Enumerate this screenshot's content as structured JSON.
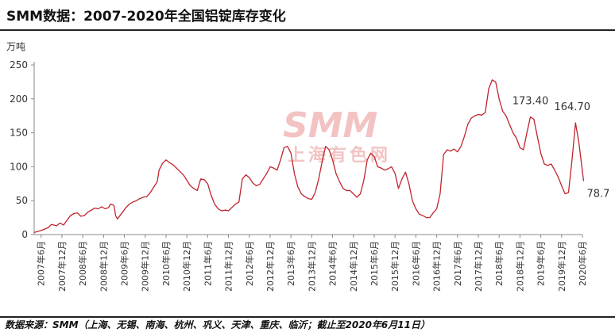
{
  "title": "SMM数据：2007-2020年全国铝锭库存变化",
  "source": "数据来源：SMM（上海、无锡、南海、杭州、巩义、天津、重庆、临沂；截止至2020年6月11日）",
  "watermark": {
    "logo": "SMM",
    "sub": "上海有色网"
  },
  "colors": {
    "line": "#c0242c",
    "axis": "#888888",
    "text": "#333333"
  },
  "chart_data": {
    "type": "line",
    "ylabel": "万吨",
    "ylim": [
      0,
      250
    ],
    "yticks": [
      "0",
      "50",
      "100",
      "150",
      "200",
      "250"
    ],
    "xlim": [
      "2007-04",
      "2020-06"
    ],
    "xticks": [
      "2007年6月",
      "2007年12月",
      "2008年6月",
      "2008年12月",
      "2009年6月",
      "2009年12月",
      "2010年6月",
      "2010年12月",
      "2011年6月",
      "2011年12月",
      "2012年6月",
      "2012年12月",
      "2013年6月",
      "2013年12月",
      "2014年6月",
      "2014年12月",
      "2015年6月",
      "2015年12月",
      "2016年6月",
      "2016年12月",
      "2017年6月",
      "2017年12月",
      "2018年6月",
      "2018年12月",
      "2019年6月",
      "2019年12月",
      "2020年6月"
    ],
    "grid": false,
    "legend": "none",
    "series": [
      {
        "color": "#c0242c",
        "points": [
          [
            "2007-04-01",
            3
          ],
          [
            "2007-06-01",
            6
          ],
          [
            "2007-08-01",
            10
          ],
          [
            "2007-09-01",
            15
          ],
          [
            "2007-10-15",
            13
          ],
          [
            "2007-11-15",
            17
          ],
          [
            "2007-12-15",
            14
          ],
          [
            "2008-01-15",
            21
          ],
          [
            "2008-02-15",
            28
          ],
          [
            "2008-03-15",
            31
          ],
          [
            "2008-04-15",
            32
          ],
          [
            "2008-05-15",
            27
          ],
          [
            "2008-06-15",
            28
          ],
          [
            "2008-07-15",
            33
          ],
          [
            "2008-08-15",
            36
          ],
          [
            "2008-09-15",
            39
          ],
          [
            "2008-10-15",
            38
          ],
          [
            "2008-11-15",
            41
          ],
          [
            "2008-12-15",
            38
          ],
          [
            "2009-01-15",
            40
          ],
          [
            "2009-02-01",
            45
          ],
          [
            "2009-03-01",
            43
          ],
          [
            "2009-03-15",
            28
          ],
          [
            "2009-04-01",
            23
          ],
          [
            "2009-05-15",
            33
          ],
          [
            "2009-06-15",
            40
          ],
          [
            "2009-07-15",
            45
          ],
          [
            "2009-08-15",
            48
          ],
          [
            "2009-09-15",
            50
          ],
          [
            "2009-10-15",
            53
          ],
          [
            "2009-11-15",
            55
          ],
          [
            "2009-12-15",
            56
          ],
          [
            "2010-01-15",
            62
          ],
          [
            "2010-02-15",
            70
          ],
          [
            "2010-03-15",
            78
          ],
          [
            "2010-04-01",
            95
          ],
          [
            "2010-05-01",
            105
          ],
          [
            "2010-06-01",
            110
          ],
          [
            "2010-07-01",
            106
          ],
          [
            "2010-08-01",
            103
          ],
          [
            "2010-09-01",
            98
          ],
          [
            "2010-10-01",
            93
          ],
          [
            "2010-11-01",
            88
          ],
          [
            "2010-12-01",
            80
          ],
          [
            "2011-01-01",
            72
          ],
          [
            "2011-02-01",
            68
          ],
          [
            "2011-03-01",
            65
          ],
          [
            "2011-04-01",
            82
          ],
          [
            "2011-05-01",
            81
          ],
          [
            "2011-06-01",
            75
          ],
          [
            "2011-07-01",
            58
          ],
          [
            "2011-08-01",
            45
          ],
          [
            "2011-09-01",
            38
          ],
          [
            "2011-10-01",
            35
          ],
          [
            "2011-11-01",
            36
          ],
          [
            "2011-12-01",
            35
          ],
          [
            "2012-01-01",
            40
          ],
          [
            "2012-02-01",
            45
          ],
          [
            "2012-03-01",
            48
          ],
          [
            "2012-04-01",
            82
          ],
          [
            "2012-05-01",
            88
          ],
          [
            "2012-06-01",
            84
          ],
          [
            "2012-07-01",
            76
          ],
          [
            "2012-08-01",
            72
          ],
          [
            "2012-09-01",
            74
          ],
          [
            "2012-10-01",
            82
          ],
          [
            "2012-11-01",
            90
          ],
          [
            "2012-12-01",
            100
          ],
          [
            "2013-01-01",
            98
          ],
          [
            "2013-02-01",
            95
          ],
          [
            "2013-03-01",
            110
          ],
          [
            "2013-04-01",
            128
          ],
          [
            "2013-05-01",
            130
          ],
          [
            "2013-06-01",
            120
          ],
          [
            "2013-07-01",
            90
          ],
          [
            "2013-08-01",
            70
          ],
          [
            "2013-09-01",
            60
          ],
          [
            "2013-10-01",
            56
          ],
          [
            "2013-11-01",
            53
          ],
          [
            "2013-12-01",
            52
          ],
          [
            "2014-01-01",
            62
          ],
          [
            "2014-02-01",
            82
          ],
          [
            "2014-03-01",
            108
          ],
          [
            "2014-04-01",
            130
          ],
          [
            "2014-05-01",
            125
          ],
          [
            "2014-06-01",
            110
          ],
          [
            "2014-07-01",
            90
          ],
          [
            "2014-08-01",
            78
          ],
          [
            "2014-09-01",
            68
          ],
          [
            "2014-10-01",
            65
          ],
          [
            "2014-11-01",
            65
          ],
          [
            "2014-12-01",
            60
          ],
          [
            "2015-01-01",
            55
          ],
          [
            "2015-02-01",
            60
          ],
          [
            "2015-03-01",
            80
          ],
          [
            "2015-04-01",
            110
          ],
          [
            "2015-05-01",
            120
          ],
          [
            "2015-06-01",
            115
          ],
          [
            "2015-07-01",
            100
          ],
          [
            "2015-08-01",
            98
          ],
          [
            "2015-09-01",
            95
          ],
          [
            "2015-10-01",
            97
          ],
          [
            "2015-11-01",
            100
          ],
          [
            "2015-12-01",
            90
          ],
          [
            "2016-01-01",
            68
          ],
          [
            "2016-02-01",
            82
          ],
          [
            "2016-03-01",
            92
          ],
          [
            "2016-04-01",
            75
          ],
          [
            "2016-05-01",
            50
          ],
          [
            "2016-06-01",
            38
          ],
          [
            "2016-07-01",
            30
          ],
          [
            "2016-08-01",
            28
          ],
          [
            "2016-09-01",
            25
          ],
          [
            "2016-10-01",
            25
          ],
          [
            "2016-11-01",
            32
          ],
          [
            "2016-12-01",
            38
          ],
          [
            "2017-01-01",
            60
          ],
          [
            "2017-02-01",
            118
          ],
          [
            "2017-03-01",
            125
          ],
          [
            "2017-04-01",
            123
          ],
          [
            "2017-05-01",
            126
          ],
          [
            "2017-06-01",
            122
          ],
          [
            "2017-07-01",
            130
          ],
          [
            "2017-08-01",
            145
          ],
          [
            "2017-09-01",
            163
          ],
          [
            "2017-10-01",
            172
          ],
          [
            "2017-11-01",
            175
          ],
          [
            "2017-12-01",
            177
          ],
          [
            "2018-01-01",
            176
          ],
          [
            "2018-02-01",
            180
          ],
          [
            "2018-03-01",
            215
          ],
          [
            "2018-04-01",
            228
          ],
          [
            "2018-05-01",
            225
          ],
          [
            "2018-06-01",
            200
          ],
          [
            "2018-07-01",
            182
          ],
          [
            "2018-08-01",
            175
          ],
          [
            "2018-09-01",
            162
          ],
          [
            "2018-10-01",
            150
          ],
          [
            "2018-11-01",
            142
          ],
          [
            "2018-12-01",
            128
          ],
          [
            "2019-01-01",
            125
          ],
          [
            "2019-02-01",
            150
          ],
          [
            "2019-03-01",
            173.4
          ],
          [
            "2019-04-01",
            170
          ],
          [
            "2019-05-01",
            145
          ],
          [
            "2019-06-01",
            120
          ],
          [
            "2019-07-01",
            104
          ],
          [
            "2019-08-01",
            102
          ],
          [
            "2019-09-01",
            104
          ],
          [
            "2019-10-01",
            95
          ],
          [
            "2019-11-01",
            85
          ],
          [
            "2019-12-01",
            72
          ],
          [
            "2020-01-01",
            60
          ],
          [
            "2020-02-01",
            62
          ],
          [
            "2020-03-01",
            110
          ],
          [
            "2020-04-01",
            164.7
          ],
          [
            "2020-05-01",
            135
          ],
          [
            "2020-06-11",
            78.7
          ]
        ]
      }
    ],
    "annotations": [
      {
        "text": "173.40",
        "x": "2019-03-01",
        "y": 173.4
      },
      {
        "text": "164.70",
        "x": "2020-04-01",
        "y": 164.7
      },
      {
        "text": "78.7",
        "x": "2020-06-11",
        "y": 78.7
      }
    ]
  }
}
